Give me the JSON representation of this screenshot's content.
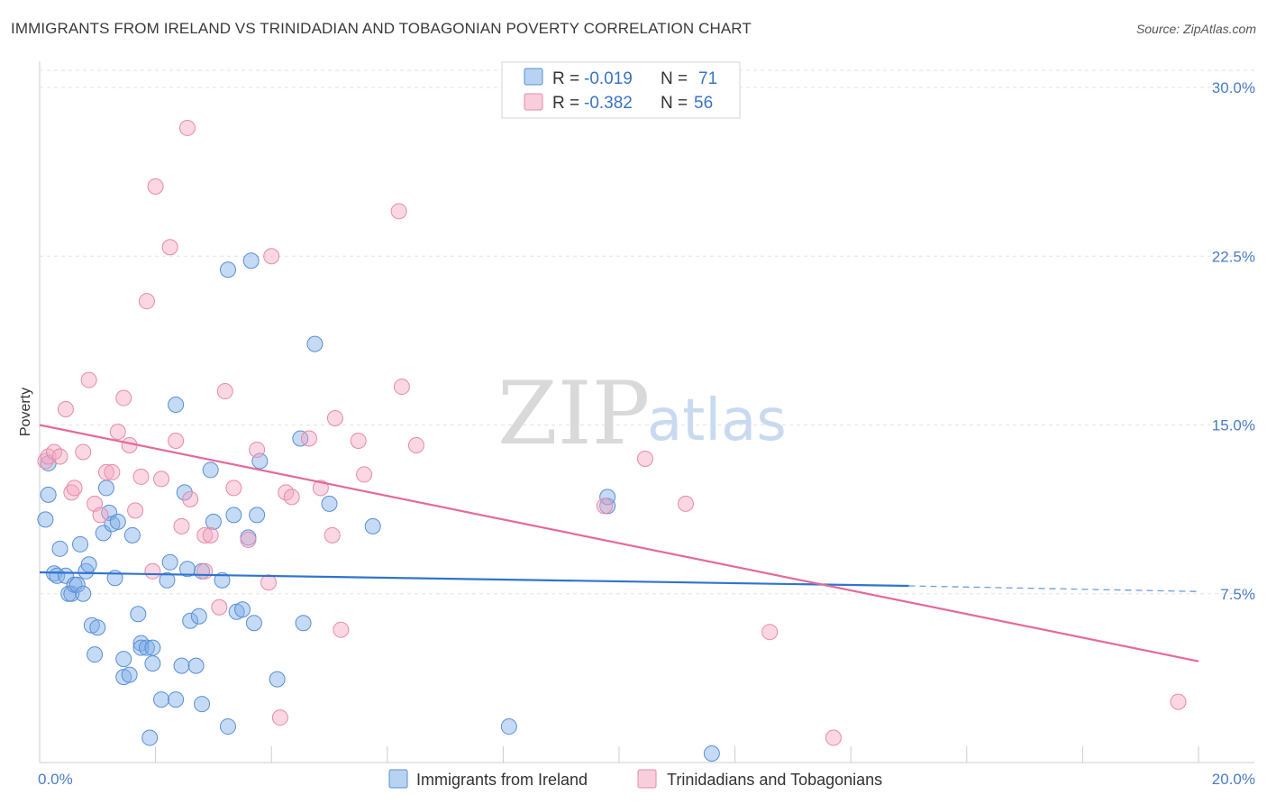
{
  "title": "IMMIGRANTS FROM IRELAND VS TRINIDADIAN AND TOBAGONIAN POVERTY CORRELATION CHART",
  "source": "Source: ZipAtlas.com",
  "watermark": {
    "zip": "ZIP",
    "atlas": "atlas"
  },
  "legend": {
    "rows": [
      {
        "r_label": "R =",
        "r_value": "-0.019",
        "n_label": "N =",
        "n_value": "71",
        "color": "#7eaee8"
      },
      {
        "r_label": "R =",
        "r_value": "-0.382",
        "n_label": "N =",
        "n_value": "56",
        "color": "#f4a6c0"
      }
    ]
  },
  "chart_data": {
    "type": "scatter",
    "ylabel": "Poverty",
    "xlim": [
      0,
      20
    ],
    "ylim": [
      0,
      30
    ],
    "y_ticks": [
      {
        "value": 7.5,
        "label": "7.5%"
      },
      {
        "value": 15.0,
        "label": "15.0%"
      },
      {
        "value": 22.5,
        "label": "22.5%"
      },
      {
        "value": 30.0,
        "label": "30.0%"
      }
    ],
    "x_tick_labels": [
      {
        "value": 0,
        "label": "0.0%"
      },
      {
        "value": 20,
        "label": "20.0%"
      }
    ],
    "x_minor_ticks": [
      0,
      2,
      4,
      6,
      8,
      10,
      12,
      14,
      16,
      18,
      20
    ],
    "grid": true,
    "series": [
      {
        "name": "Immigrants from Ireland",
        "color": "#7eaee8",
        "stroke": "#5a8fd6",
        "trend": {
          "x0": 0,
          "y0": 8.45,
          "x1": 15,
          "y1": 7.85,
          "dash_to": 20,
          "dash_y": 7.6,
          "color": "#2f74d0"
        },
        "points": [
          [
            0.15,
            13.3
          ],
          [
            0.15,
            11.9
          ],
          [
            0.1,
            10.8
          ],
          [
            0.25,
            8.4
          ],
          [
            0.3,
            8.3
          ],
          [
            0.35,
            9.5
          ],
          [
            0.45,
            8.3
          ],
          [
            0.5,
            7.5
          ],
          [
            0.55,
            7.5
          ],
          [
            0.6,
            7.9
          ],
          [
            0.65,
            7.9
          ],
          [
            0.7,
            9.7
          ],
          [
            0.75,
            7.5
          ],
          [
            0.8,
            8.5
          ],
          [
            0.85,
            8.8
          ],
          [
            0.9,
            6.1
          ],
          [
            0.95,
            4.8
          ],
          [
            1.0,
            6.0
          ],
          [
            1.1,
            10.2
          ],
          [
            1.15,
            12.2
          ],
          [
            1.2,
            11.1
          ],
          [
            1.25,
            10.6
          ],
          [
            1.35,
            10.7
          ],
          [
            1.3,
            8.2
          ],
          [
            1.45,
            4.6
          ],
          [
            1.45,
            3.8
          ],
          [
            1.55,
            3.9
          ],
          [
            1.6,
            10.1
          ],
          [
            1.7,
            6.6
          ],
          [
            1.75,
            5.3
          ],
          [
            1.75,
            5.1
          ],
          [
            1.85,
            5.1
          ],
          [
            1.9,
            1.1
          ],
          [
            1.95,
            5.1
          ],
          [
            1.95,
            4.4
          ],
          [
            2.1,
            2.8
          ],
          [
            2.2,
            8.1
          ],
          [
            2.25,
            8.9
          ],
          [
            2.35,
            2.8
          ],
          [
            2.35,
            15.9
          ],
          [
            2.45,
            4.3
          ],
          [
            2.5,
            12.0
          ],
          [
            2.55,
            8.6
          ],
          [
            2.6,
            6.3
          ],
          [
            2.7,
            4.3
          ],
          [
            2.75,
            6.5
          ],
          [
            2.8,
            2.6
          ],
          [
            2.8,
            8.5
          ],
          [
            2.95,
            13.0
          ],
          [
            3.0,
            10.7
          ],
          [
            3.15,
            8.1
          ],
          [
            3.25,
            1.6
          ],
          [
            3.25,
            21.9
          ],
          [
            3.35,
            11.0
          ],
          [
            3.4,
            6.7
          ],
          [
            3.5,
            6.8
          ],
          [
            3.6,
            10.0
          ],
          [
            3.65,
            22.3
          ],
          [
            3.7,
            6.2
          ],
          [
            3.75,
            11.0
          ],
          [
            3.8,
            13.4
          ],
          [
            4.1,
            3.7
          ],
          [
            4.5,
            14.4
          ],
          [
            4.55,
            6.2
          ],
          [
            4.75,
            18.6
          ],
          [
            5.0,
            11.5
          ],
          [
            5.75,
            10.5
          ],
          [
            8.1,
            1.6
          ],
          [
            9.8,
            11.4
          ],
          [
            9.8,
            11.8
          ],
          [
            11.6,
            0.4
          ]
        ]
      },
      {
        "name": "Trinidadians and Tobagonians",
        "color": "#f4a6c0",
        "stroke": "#e88aaa",
        "trend": {
          "x0": 0,
          "y0": 15.0,
          "x1": 20,
          "y1": 4.5,
          "color": "#e46a9a"
        },
        "points": [
          [
            0.1,
            13.4
          ],
          [
            0.15,
            13.6
          ],
          [
            0.25,
            13.8
          ],
          [
            0.35,
            13.6
          ],
          [
            0.45,
            15.7
          ],
          [
            0.55,
            12.0
          ],
          [
            0.6,
            12.2
          ],
          [
            0.75,
            13.8
          ],
          [
            0.85,
            17.0
          ],
          [
            0.95,
            11.5
          ],
          [
            1.05,
            11.0
          ],
          [
            1.15,
            12.9
          ],
          [
            1.25,
            12.9
          ],
          [
            1.35,
            14.7
          ],
          [
            1.45,
            16.2
          ],
          [
            1.55,
            14.1
          ],
          [
            1.65,
            11.2
          ],
          [
            1.75,
            12.7
          ],
          [
            1.85,
            20.5
          ],
          [
            1.95,
            8.5
          ],
          [
            2.0,
            25.6
          ],
          [
            2.1,
            12.6
          ],
          [
            2.25,
            22.9
          ],
          [
            2.35,
            14.3
          ],
          [
            2.45,
            10.5
          ],
          [
            2.55,
            28.2
          ],
          [
            2.6,
            11.7
          ],
          [
            2.85,
            8.5
          ],
          [
            2.85,
            10.1
          ],
          [
            2.95,
            10.1
          ],
          [
            3.1,
            6.9
          ],
          [
            3.2,
            16.5
          ],
          [
            3.35,
            12.2
          ],
          [
            3.6,
            9.9
          ],
          [
            3.75,
            13.9
          ],
          [
            3.95,
            8.0
          ],
          [
            4.0,
            22.5
          ],
          [
            4.15,
            2.0
          ],
          [
            4.25,
            12.0
          ],
          [
            4.35,
            11.8
          ],
          [
            4.65,
            14.4
          ],
          [
            4.85,
            12.2
          ],
          [
            5.05,
            10.1
          ],
          [
            5.1,
            15.3
          ],
          [
            5.2,
            5.9
          ],
          [
            5.5,
            14.3
          ],
          [
            5.6,
            12.8
          ],
          [
            6.2,
            24.5
          ],
          [
            6.25,
            16.7
          ],
          [
            6.5,
            14.1
          ],
          [
            9.75,
            11.4
          ],
          [
            10.45,
            13.5
          ],
          [
            11.15,
            11.5
          ],
          [
            12.6,
            5.8
          ],
          [
            13.7,
            1.1
          ],
          [
            19.65,
            2.7
          ]
        ]
      }
    ]
  }
}
